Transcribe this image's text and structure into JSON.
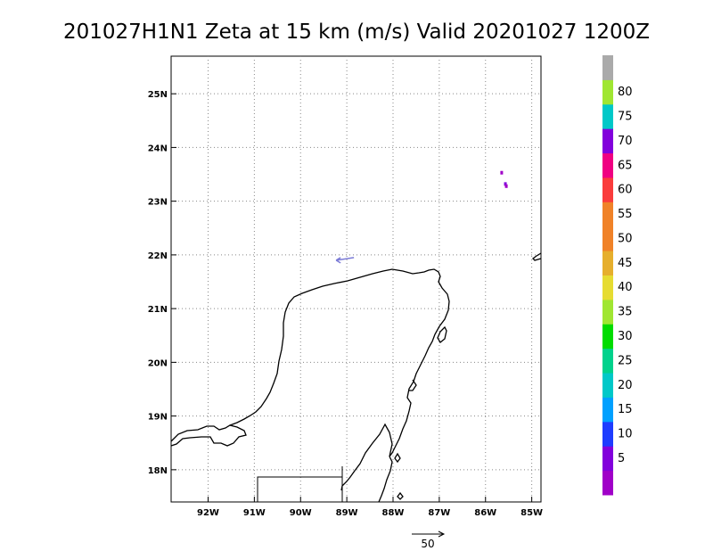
{
  "title": "201027H1N1 Zeta at 15 km (m/s) Valid 20201027 1200Z",
  "map": {
    "lon_range": [
      -92.8,
      -84.8
    ],
    "lat_range": [
      17.4,
      25.7
    ],
    "lon_ticks": [
      {
        "value": -92,
        "label": "92W"
      },
      {
        "value": -91,
        "label": "91W"
      },
      {
        "value": -90,
        "label": "90W"
      },
      {
        "value": -89,
        "label": "89W"
      },
      {
        "value": -88,
        "label": "88W"
      },
      {
        "value": -87,
        "label": "87W"
      },
      {
        "value": -86,
        "label": "86W"
      },
      {
        "value": -85,
        "label": "85W"
      }
    ],
    "lat_ticks": [
      {
        "value": 25,
        "label": "25N"
      },
      {
        "value": 24,
        "label": "24N"
      },
      {
        "value": 23,
        "label": "23N"
      },
      {
        "value": 22,
        "label": "22N"
      },
      {
        "value": 21,
        "label": "21N"
      },
      {
        "value": 20,
        "label": "20N"
      },
      {
        "value": 19,
        "label": "19N"
      },
      {
        "value": 18,
        "label": "18N"
      }
    ],
    "grid": "dotted",
    "coastline_color": "#000000"
  },
  "colorbar": {
    "levels": [
      {
        "label": "",
        "color": "#a000c8"
      },
      {
        "label": "5",
        "color": "#8200dc"
      },
      {
        "label": "10",
        "color": "#1e3cff"
      },
      {
        "label": "15",
        "color": "#00a0ff"
      },
      {
        "label": "20",
        "color": "#00c8c8"
      },
      {
        "label": "25",
        "color": "#00d28c"
      },
      {
        "label": "30",
        "color": "#00dc00"
      },
      {
        "label": "35",
        "color": "#a0e632"
      },
      {
        "label": "40",
        "color": "#e6dc32"
      },
      {
        "label": "45",
        "color": "#e6af2d"
      },
      {
        "label": "50",
        "color": "#f08228"
      },
      {
        "label": "55",
        "color": "#f08228"
      },
      {
        "label": "60",
        "color": "#fa3c3c"
      },
      {
        "label": "65",
        "color": "#f00082"
      },
      {
        "label": "70",
        "color": "#8200dc"
      },
      {
        "label": "75",
        "color": "#00c8c8"
      },
      {
        "label": "80",
        "color": "#a0e632"
      },
      {
        "label": "",
        "color": "#aaaaaa"
      }
    ]
  },
  "features": {
    "wind_speed_patches": [
      {
        "lon": -85.65,
        "lat": 23.53,
        "color": "#a000c8"
      },
      {
        "lon": -85.57,
        "lat": 23.32,
        "color": "#8200dc"
      },
      {
        "lon": -85.55,
        "lat": 23.28,
        "color": "#a000c8"
      }
    ],
    "vector_near_coast": {
      "lon": -89.0,
      "lat": 21.9,
      "color": "#7b7bd6"
    }
  },
  "vector_key": {
    "label": "50"
  }
}
